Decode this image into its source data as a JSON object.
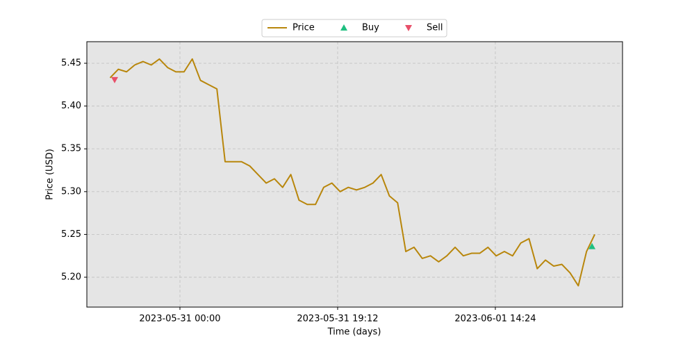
{
  "chart_data": {
    "type": "line",
    "xlabel": "Time (days)",
    "ylabel": "Price (USD)",
    "xlim": [
      "2023-05-30 12:40",
      "2023-06-02 05:53"
    ],
    "ylim": [
      5.1651,
      5.4752
    ],
    "xticks": [
      "2023-05-31 00:00",
      "2023-05-31 19:12",
      "2023-06-01 14:24"
    ],
    "yticks": [
      {
        "value": 5.2,
        "label": "5.20"
      },
      5.25,
      {
        "value": 5.3,
        "label": "5.30"
      },
      5.35,
      {
        "value": 5.4,
        "label": "5.40"
      },
      5.45
    ],
    "grid": true,
    "legend": "upper center",
    "series": [
      {
        "name": "Price",
        "color": "#b8860b",
        "marker": "line",
        "x": [
          "2023-05-30 15:30",
          "2023-05-30 16:30",
          "2023-05-30 17:30",
          "2023-05-30 18:30",
          "2023-05-30 19:30",
          "2023-05-30 20:30",
          "2023-05-30 21:30",
          "2023-05-30 22:30",
          "2023-05-30 23:30",
          "2023-05-31 00:30",
          "2023-05-31 01:30",
          "2023-05-31 02:30",
          "2023-05-31 03:30",
          "2023-05-31 04:30",
          "2023-05-31 05:30",
          "2023-05-31 06:30",
          "2023-05-31 07:30",
          "2023-05-31 08:30",
          "2023-05-31 09:30",
          "2023-05-31 10:30",
          "2023-05-31 11:30",
          "2023-05-31 12:30",
          "2023-05-31 13:30",
          "2023-05-31 14:30",
          "2023-05-31 15:30",
          "2023-05-31 16:30",
          "2023-05-31 17:30",
          "2023-05-31 18:30",
          "2023-05-31 19:30",
          "2023-05-31 20:30",
          "2023-05-31 21:30",
          "2023-05-31 22:30",
          "2023-05-31 23:30",
          "2023-06-01 00:30",
          "2023-06-01 01:30",
          "2023-06-01 02:30",
          "2023-06-01 03:30",
          "2023-06-01 04:30",
          "2023-06-01 05:30",
          "2023-06-01 06:30",
          "2023-06-01 07:30",
          "2023-06-01 08:30",
          "2023-06-01 09:30",
          "2023-06-01 10:30",
          "2023-06-01 11:30",
          "2023-06-01 12:30",
          "2023-06-01 13:30",
          "2023-06-01 14:30",
          "2023-06-01 15:30",
          "2023-06-01 16:30",
          "2023-06-01 17:30",
          "2023-06-01 18:30",
          "2023-06-01 19:30",
          "2023-06-01 20:30",
          "2023-06-01 21:30",
          "2023-06-01 22:30",
          "2023-06-01 23:30",
          "2023-06-02 00:30",
          "2023-06-02 01:30",
          "2023-06-02 02:30"
        ],
        "values": [
          5.433,
          5.443,
          5.44,
          5.448,
          5.452,
          5.448,
          5.455,
          5.445,
          5.44,
          5.44,
          5.455,
          5.43,
          5.425,
          5.42,
          5.335,
          5.335,
          5.335,
          5.33,
          5.32,
          5.31,
          5.315,
          5.305,
          5.32,
          5.29,
          5.285,
          5.285,
          5.305,
          5.31,
          5.3,
          5.305,
          5.302,
          5.305,
          5.31,
          5.32,
          5.295,
          5.287,
          5.23,
          5.235,
          5.222,
          5.225,
          5.218,
          5.225,
          5.235,
          5.225,
          5.228,
          5.228,
          5.235,
          5.225,
          5.23,
          5.225,
          5.24,
          5.245,
          5.21,
          5.22,
          5.213,
          5.215,
          5.205,
          5.19,
          5.23,
          5.25
        ]
      },
      {
        "name": "Buy",
        "color": "#1fbf80",
        "marker": "triangle-up",
        "x": [
          "2023-06-02 02:10"
        ],
        "values": [
          5.236
        ]
      },
      {
        "name": "Sell",
        "color": "#e8506a",
        "marker": "triangle-down",
        "x": [
          "2023-05-30 16:03"
        ],
        "values": [
          5.4307
        ]
      }
    ]
  }
}
